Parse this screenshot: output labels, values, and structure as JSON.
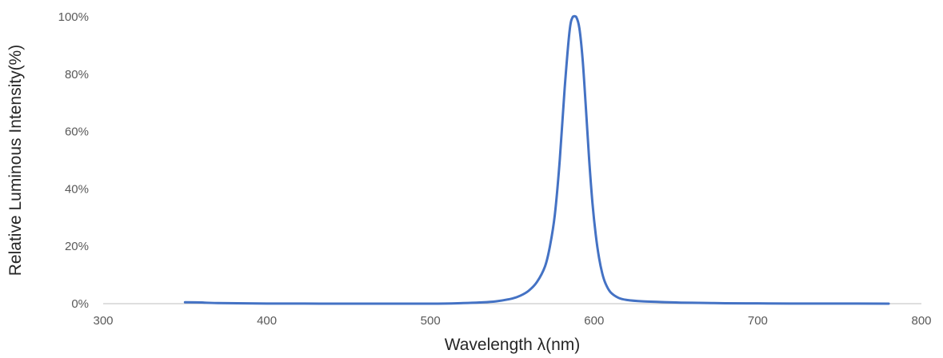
{
  "chart_data": {
    "type": "line",
    "title": "",
    "xlabel": "Wavelength λ(nm)",
    "ylabel": "Relative Luminous Intensity(%)",
    "xlim": [
      300,
      800
    ],
    "ylim": [
      0,
      100
    ],
    "x_ticks": [
      300,
      400,
      500,
      600,
      700,
      800
    ],
    "y_ticks": [
      0,
      20,
      40,
      60,
      80,
      100
    ],
    "x_tick_labels": [
      "300",
      "400",
      "500",
      "600",
      "700",
      "800"
    ],
    "y_tick_labels": [
      "0%",
      "20%",
      "40%",
      "60%",
      "80%",
      "100%"
    ],
    "grid": false,
    "legend": "none",
    "series": [
      {
        "color": "#4472C4",
        "x": [
          350,
          360,
          370,
          400,
          450,
          500,
          520,
          530,
          540,
          550,
          555,
          560,
          565,
          570,
          573,
          576,
          579,
          582,
          585,
          587,
          589,
          591,
          593,
          595,
          597,
          599,
          601,
          603,
          605,
          607,
          610,
          615,
          620,
          630,
          640,
          650,
          660,
          680,
          700,
          720,
          750,
          780
        ],
        "y": [
          0.5,
          0.4,
          0.2,
          0.05,
          0,
          0,
          0.2,
          0.4,
          0.8,
          1.8,
          2.8,
          4.5,
          7.5,
          13,
          20,
          31,
          50,
          75,
          95,
          100,
          100,
          96,
          85,
          68,
          50,
          35,
          24,
          16,
          10.5,
          7,
          4,
          2,
          1.3,
          0.8,
          0.6,
          0.4,
          0.3,
          0.15,
          0.1,
          0.05,
          0.05,
          0
        ]
      }
    ]
  }
}
